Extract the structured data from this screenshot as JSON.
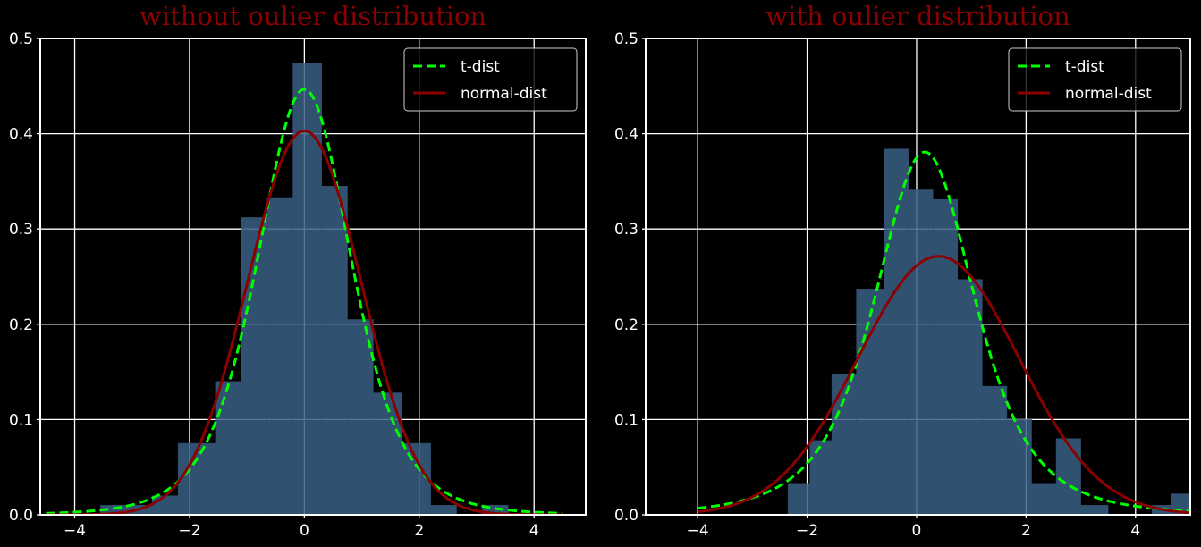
{
  "colors": {
    "background": "#000000",
    "axes": "#ffffff",
    "grid": "#ffffff",
    "title": "#8b0000",
    "histogram": "#3a5f85",
    "t_dist": "#00ff00",
    "normal_dist": "#8b0000"
  },
  "chart_data": [
    {
      "type": "bar",
      "title": "without oulier distribution",
      "xlim": [
        -4.6,
        4.9
      ],
      "ylim": [
        0,
        0.5
      ],
      "xticks": [
        -4,
        -2,
        0,
        2,
        4
      ],
      "yticks": [
        0.0,
        0.1,
        0.2,
        0.3,
        0.4,
        0.5
      ],
      "grid": true,
      "legend_position": "top-right",
      "histogram": {
        "bins": [
          {
            "x0": -3.55,
            "x1": -3.1,
            "value": 0.01
          },
          {
            "x0": -3.1,
            "x1": -2.65,
            "value": 0.01
          },
          {
            "x0": -2.65,
            "x1": -2.2,
            "value": 0.02
          },
          {
            "x0": -2.2,
            "x1": -1.55,
            "value": 0.075
          },
          {
            "x0": -1.55,
            "x1": -1.1,
            "value": 0.14
          },
          {
            "x0": -1.1,
            "x1": -0.65,
            "value": 0.312
          },
          {
            "x0": -0.65,
            "x1": -0.2,
            "value": 0.333
          },
          {
            "x0": -0.2,
            "x1": 0.3,
            "value": 0.474
          },
          {
            "x0": 0.3,
            "x1": 0.75,
            "value": 0.345
          },
          {
            "x0": 0.75,
            "x1": 1.2,
            "value": 0.205
          },
          {
            "x0": 1.2,
            "x1": 1.7,
            "value": 0.128
          },
          {
            "x0": 1.7,
            "x1": 2.2,
            "value": 0.075
          },
          {
            "x0": 2.2,
            "x1": 2.65,
            "value": 0.01
          },
          {
            "x0": 3.1,
            "x1": 3.55,
            "value": 0.01
          }
        ]
      },
      "series": [
        {
          "name": "t-dist",
          "kind": "t",
          "loc": 0.0,
          "scale": 0.85,
          "df": 5,
          "x_range": [
            -4.5,
            4.5
          ]
        },
        {
          "name": "normal-dist",
          "kind": "normal",
          "mean": 0.0,
          "std": 0.99,
          "x_range": [
            -4.5,
            4.5
          ]
        }
      ]
    },
    {
      "type": "bar",
      "title": "with oulier distribution",
      "xlim": [
        -4.95,
        5.0
      ],
      "ylim": [
        0,
        0.5
      ],
      "xticks": [
        -4,
        -2,
        0,
        2,
        4
      ],
      "yticks": [
        0.0,
        0.1,
        0.2,
        0.3,
        0.4,
        0.5
      ],
      "grid": true,
      "legend_position": "top-right",
      "histogram": {
        "bins": [
          {
            "x0": -2.35,
            "x1": -1.95,
            "value": 0.033
          },
          {
            "x0": -1.95,
            "x1": -1.55,
            "value": 0.078
          },
          {
            "x0": -1.55,
            "x1": -1.1,
            "value": 0.147
          },
          {
            "x0": -1.1,
            "x1": -0.6,
            "value": 0.237
          },
          {
            "x0": -0.6,
            "x1": -0.15,
            "value": 0.384
          },
          {
            "x0": -0.15,
            "x1": 0.3,
            "value": 0.341
          },
          {
            "x0": 0.3,
            "x1": 0.75,
            "value": 0.331
          },
          {
            "x0": 0.75,
            "x1": 1.2,
            "value": 0.247
          },
          {
            "x0": 1.2,
            "x1": 1.65,
            "value": 0.135
          },
          {
            "x0": 1.65,
            "x1": 2.1,
            "value": 0.1
          },
          {
            "x0": 2.1,
            "x1": 2.55,
            "value": 0.033
          },
          {
            "x0": 2.55,
            "x1": 3.0,
            "value": 0.08
          },
          {
            "x0": 3.0,
            "x1": 3.5,
            "value": 0.01
          },
          {
            "x0": 4.3,
            "x1": 4.65,
            "value": 0.01
          },
          {
            "x0": 4.65,
            "x1": 5.0,
            "value": 0.022
          }
        ]
      },
      "series": [
        {
          "name": "t-dist",
          "kind": "t",
          "loc": 0.15,
          "scale": 0.97,
          "df": 3.2,
          "x_range": [
            -4.0,
            5.0
          ]
        },
        {
          "name": "normal-dist",
          "kind": "normal",
          "mean": 0.4,
          "std": 1.47,
          "x_range": [
            -4.0,
            5.0
          ]
        }
      ]
    }
  ]
}
